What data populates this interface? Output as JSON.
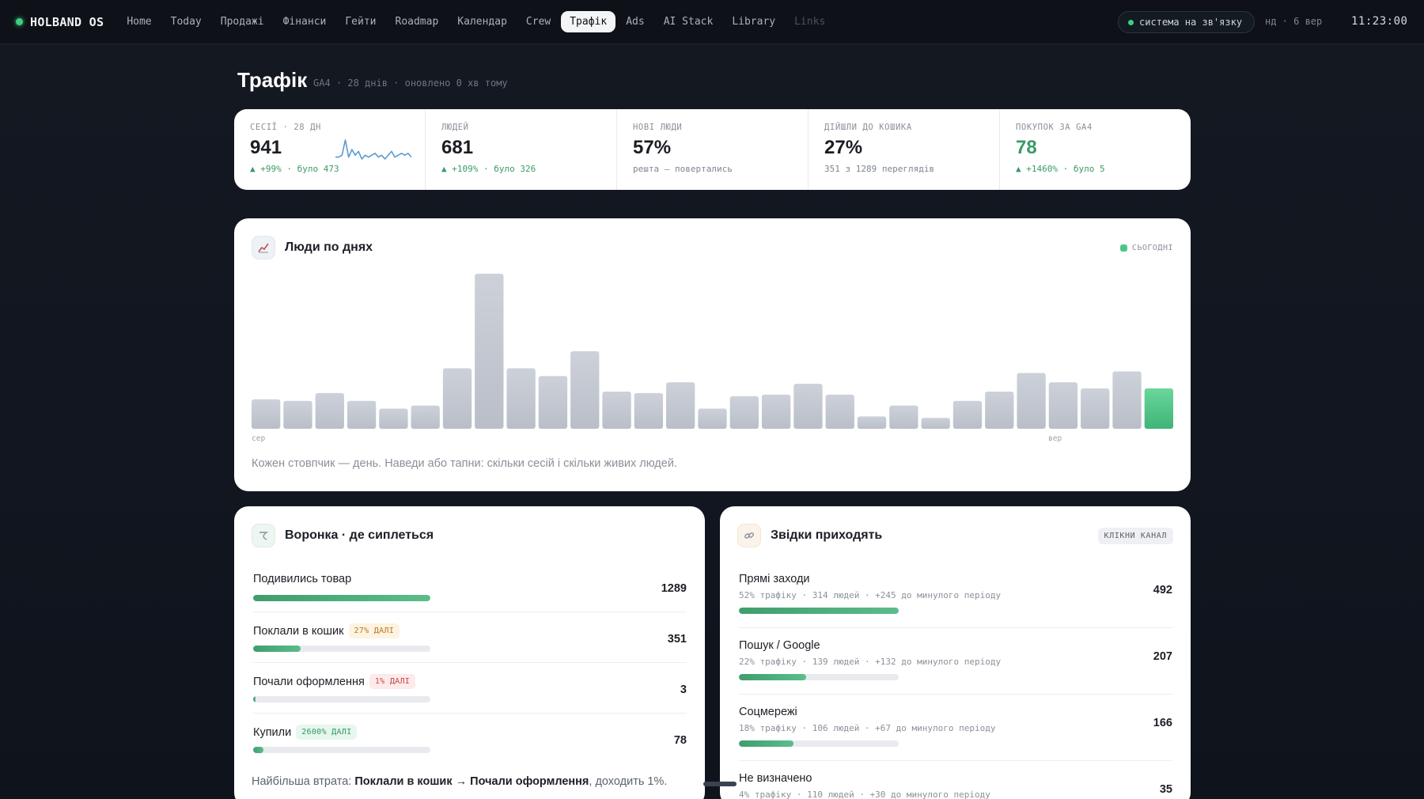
{
  "brand": {
    "name": "HOLBAND OS",
    "accent": "#3ecf7d"
  },
  "nav": {
    "items": [
      "Home",
      "Today",
      "Продажі",
      "Фінанси",
      "Гейти",
      "Roadmap",
      "Календар",
      "Crew",
      "Трафік",
      "Ads",
      "AI Stack",
      "Library",
      "Links"
    ],
    "active": "Трафік"
  },
  "status": {
    "label": "система на зв'язку",
    "date": "нд · 6 вер",
    "time": "11:23:00"
  },
  "page": {
    "title": "Трафік",
    "meta": "GA4 · 28 днів · оновлено 0 хв тому"
  },
  "kpis": [
    {
      "label": "СЕСІЇ · 28 ДН",
      "value": "941",
      "sub": "▲ +99% · було 473",
      "sub_style": "positive"
    },
    {
      "label": "ЛЮДЕЙ",
      "value": "681",
      "sub": "▲ +109% · було 326",
      "sub_style": "positive"
    },
    {
      "label": "НОВІ ЛЮДИ",
      "value": "57%",
      "sub": "решта — повертались",
      "sub_style": "neutral"
    },
    {
      "label": "ДІЙШЛИ ДО КОШИКА",
      "value": "27%",
      "sub": "351 з 1289 переглядів",
      "sub_style": "neutral"
    },
    {
      "label": "ПОКУПОК ЗА GA4",
      "value": "78",
      "sub": "▲ +1460% · було 5",
      "sub_style": "positive"
    }
  ],
  "sparkline": {
    "series": [
      5,
      5,
      6,
      14,
      5,
      9,
      6,
      8,
      4,
      6,
      5,
      6,
      7,
      5,
      6,
      4,
      6,
      8,
      5,
      6,
      7,
      6,
      7,
      5
    ]
  },
  "chart_card": {
    "icon": "chart-icon",
    "title": "Люди по днях",
    "legend": "СЬОГОДНІ",
    "caption": "Кожен стовпчик — день. Наведи або тапни: скільки сесій і скільки живих людей.",
    "axis_start": "сер",
    "axis_end": "вер"
  },
  "chart_data": {
    "type": "bar",
    "title": "Люди по днях",
    "series": [
      {
        "values": [
          19,
          18,
          23,
          18,
          13,
          15,
          39,
          100,
          39,
          34,
          50,
          24,
          23,
          30,
          13,
          21,
          22,
          29,
          22,
          8,
          15,
          7,
          18,
          24,
          36,
          30,
          26,
          37,
          26
        ]
      }
    ],
    "highlight_last": true,
    "colors": {
      "bar": "#c3c7d0",
      "today": "#4cc686"
    },
    "tick_labels": [
      "сер",
      "вер"
    ],
    "grid": false
  },
  "funnel": {
    "icon": "funnel-icon",
    "title": "Воронка · де сиплеться",
    "steps": [
      {
        "label": "Подивились товар",
        "value": "1289",
        "fill": 1.0,
        "badge": "",
        "badge_style": ""
      },
      {
        "label": "Поклали в кошик",
        "value": "351",
        "fill": 0.27,
        "badge": "27% ДАЛІ",
        "badge_style": "amber"
      },
      {
        "label": "Почали оформлення",
        "value": "3",
        "fill": 0.01,
        "badge": "1% ДАЛІ",
        "badge_style": "red"
      },
      {
        "label": "Купили",
        "value": "78",
        "fill": 0.06,
        "badge": "2600% ДАЛІ",
        "badge_style": "green"
      }
    ],
    "footer_prefix": "Найбільша втрата: ",
    "footer_bold": "Поклали в кошик → Почали оформлення",
    "footer_suffix": ", доходить 1%."
  },
  "sources": {
    "icon": "link-icon",
    "title": "Звідки приходять",
    "badge": "КЛІКНИ КАНАЛ",
    "items": [
      {
        "name": "Прямі заходи",
        "meta": "52% трафіку · 314 людей · +245 до минулого періоду",
        "value": "492",
        "fill": 1.0
      },
      {
        "name": "Пошук / Google",
        "meta": "22% трафіку · 139 людей · +132 до минулого періоду",
        "value": "207",
        "fill": 0.42
      },
      {
        "name": "Соцмережі",
        "meta": "18% трафіку · 106 людей · +67 до минулого періоду",
        "value": "166",
        "fill": 0.34
      },
      {
        "name": "Не визначено",
        "meta": "4% трафіку · 110 людей · +30 до минулого періоду",
        "value": "35",
        "fill": 0.07
      }
    ]
  }
}
